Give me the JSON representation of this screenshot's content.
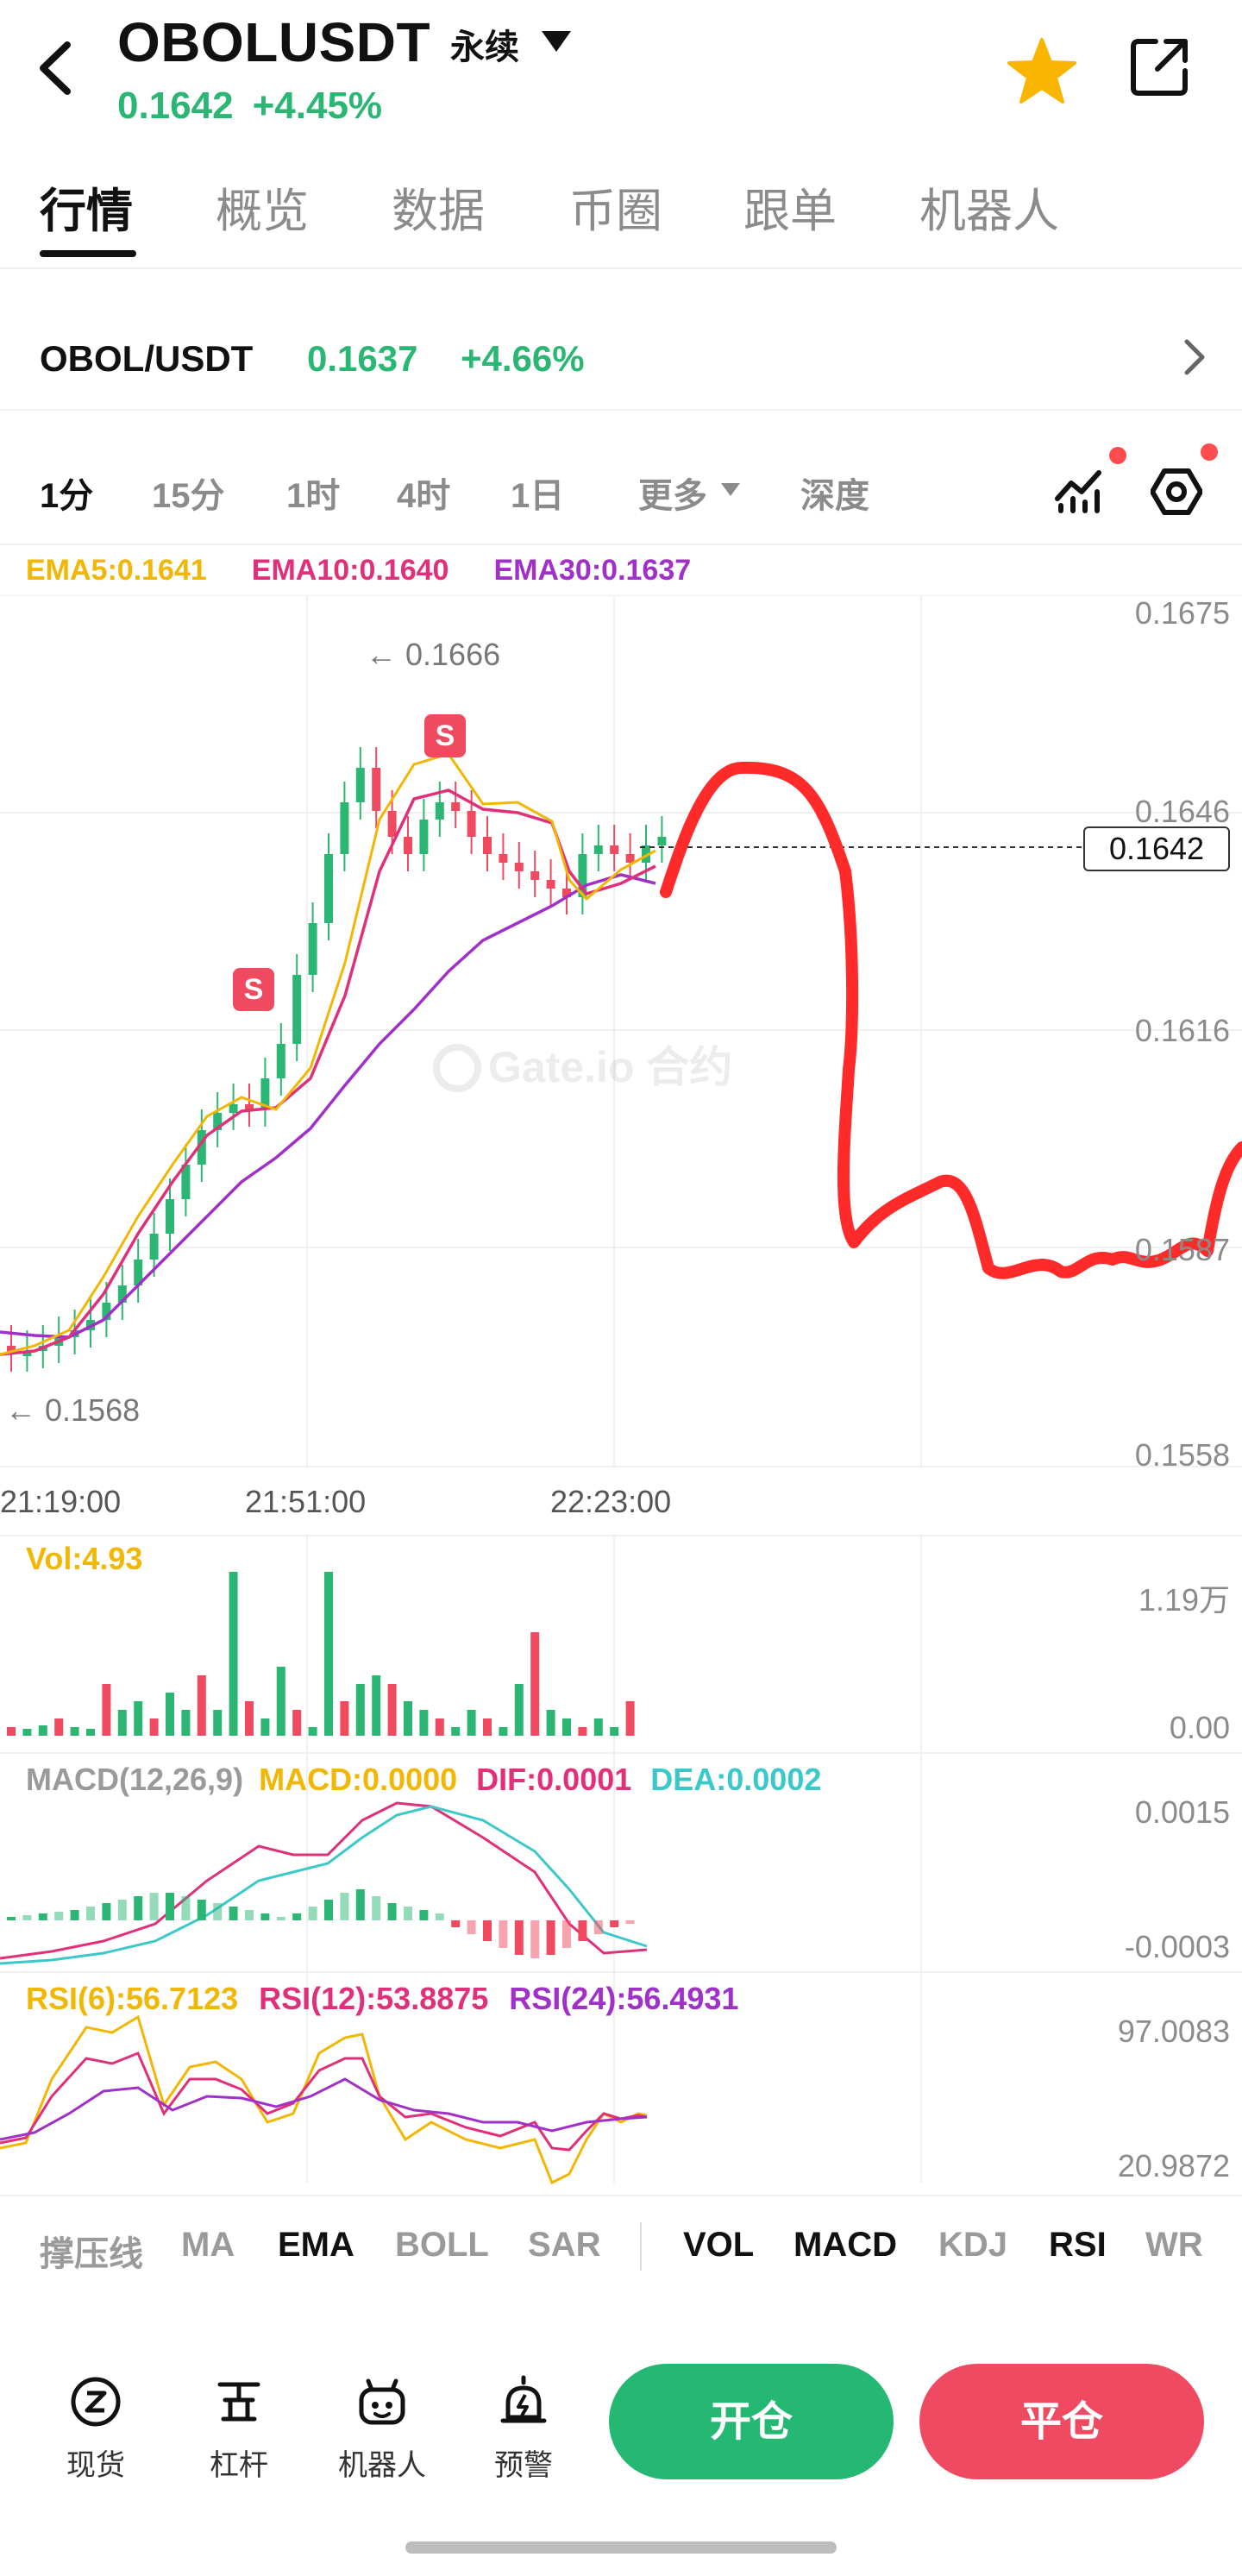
{
  "header": {
    "symbol": "OBOLUSDT",
    "contract_type": "永续",
    "price": "0.1642",
    "change": "+4.45%"
  },
  "tabs": [
    "行情",
    "概览",
    "数据",
    "币圈",
    "跟单",
    "机器人"
  ],
  "pair_row": {
    "name": "OBOL/USDT",
    "price": "0.1637",
    "change": "+4.66%"
  },
  "timeframes": [
    "1分",
    "15分",
    "1时",
    "4时",
    "1日",
    "更多",
    "深度"
  ],
  "ema": {
    "ema5": "EMA5:0.1641",
    "ema10": "EMA10:0.1640",
    "ema30": "EMA30:0.1637"
  },
  "price_axis": [
    "0.1675",
    "0.1646",
    "0.1616",
    "0.1587",
    "0.1558"
  ],
  "current_price_tag": "0.1642",
  "high_marker": "← 0.1666",
  "low_marker": "← 0.1568",
  "signal_badge": "S",
  "watermark": "Gate.io 合约",
  "time_axis": [
    "21:19:00",
    "21:51:00",
    "22:23:00"
  ],
  "volume": {
    "label": "Vol:4.93",
    "axis_max": "1.19万",
    "axis_min": "0.00"
  },
  "macd": {
    "params": "MACD(12,26,9)",
    "macd": "MACD:0.0000",
    "dif": "DIF:0.0001",
    "dea": "DEA:0.0002",
    "axis_max": "0.0015",
    "axis_min": "-0.0003"
  },
  "rsi": {
    "rsi6": "RSI(6):56.7123",
    "rsi12": "RSI(12):53.8875",
    "rsi24": "RSI(24):56.4931",
    "axis_max": "97.0083",
    "axis_min": "20.9872"
  },
  "indicator_bar": [
    "撑压线",
    "MA",
    "EMA",
    "BOLL",
    "SAR",
    "VOL",
    "MACD",
    "KDJ",
    "RSI",
    "WR"
  ],
  "bottom_nav": [
    "现货",
    "杠杆",
    "机器人",
    "预警"
  ],
  "actions": {
    "open": "开仓",
    "close": "平仓"
  },
  "colors": {
    "up": "#2bb673",
    "down": "#ef4a60",
    "ema5": "#f2b705",
    "ema10": "#e0307a",
    "ema30": "#a030c8",
    "dea": "#3cc8c8",
    "annotation": "#ff2a2a"
  },
  "chart_data": {
    "type": "candlestick",
    "x": [
      "21:19:00",
      "21:51:00",
      "22:23:00"
    ],
    "ylim": [
      0.1558,
      0.1675
    ],
    "high": 0.1666,
    "low": 0.1568,
    "last": 0.1642
  }
}
